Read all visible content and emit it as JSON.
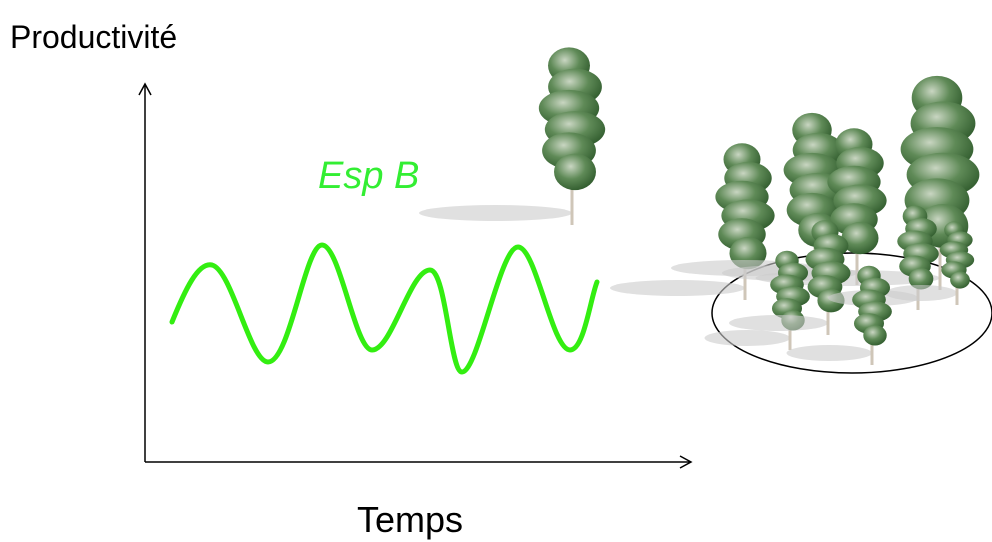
{
  "y_axis_label": "Productivité",
  "x_axis_label": "Temps",
  "curve_label": "Esp B"
}
